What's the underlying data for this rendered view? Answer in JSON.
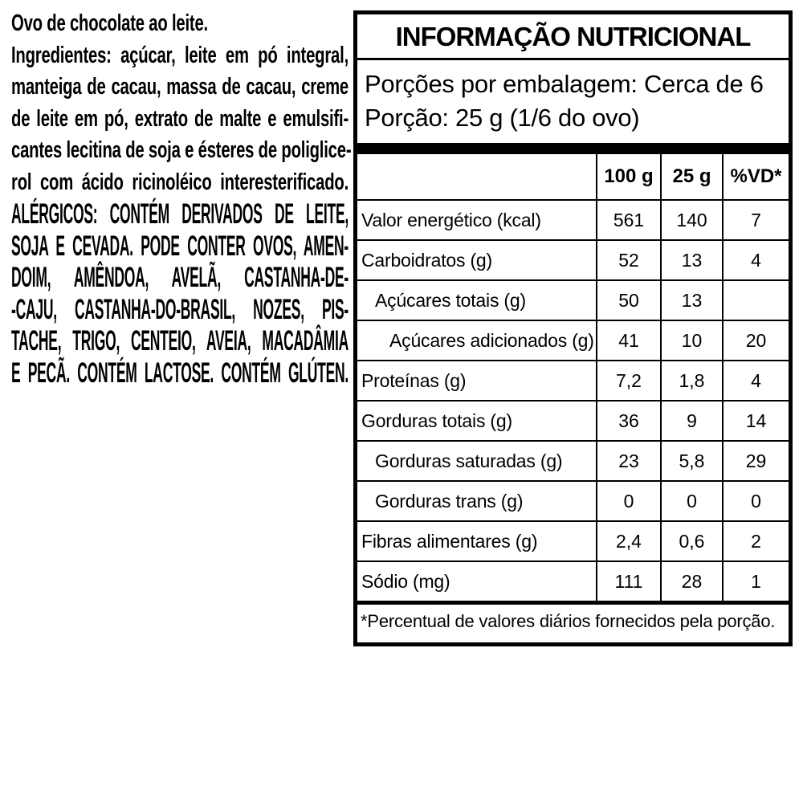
{
  "page": {
    "background_color": "#ffffff",
    "text_color": "#000000",
    "border_color": "#000000"
  },
  "left_panel": {
    "product_line": "Ovo de chocolate ao leite.",
    "ingredients_lead": "Ingredientes:",
    "ingredients_first_rest": "açúcar, leite em pó integral,",
    "ingredients_lines": [
      "manteiga de cacau, massa de cacau, creme",
      "de leite em pó, extrato de malte e emulsifi-",
      "cantes lecitina de soja e ésteres de poliglice-",
      "rol com ácido ricinoléico interesterificado."
    ],
    "allergens_lines": [
      "ALÉRGICOS: CONTÉM DERIVADOS DE LEITE,",
      "SOJA E CEVADA. PODE CONTER OVOS, AMEN-",
      "DOIM, AMÊNDOA, AVELÃ, CASTANHA-DE-",
      "-CAJU, CASTANHA-DO-BRASIL, NOZES, PIS-",
      "TACHE, TRIGO, CENTEIO, AVEIA, MACADÂMIA",
      "E PECÃ. CONTÉM LACTOSE. CONTÉM GLÚTEN."
    ]
  },
  "nutrition_table": {
    "title": "INFORMAÇÃO NUTRICIONAL",
    "servings_line": "Porções por embalagem: Cerca de 6",
    "portion_line": "Porção: 25 g (1/6 do ovo)",
    "columns": [
      "100 g",
      "25 g",
      "%VD*"
    ],
    "rows": [
      {
        "label": "Valor energético (kcal)",
        "indent": 0,
        "values": [
          "561",
          "140",
          "7"
        ]
      },
      {
        "label": "Carboidratos (g)",
        "indent": 0,
        "values": [
          "52",
          "13",
          "4"
        ]
      },
      {
        "label": "Açúcares totais (g)",
        "indent": 1,
        "values": [
          "50",
          "13",
          ""
        ]
      },
      {
        "label": "Açúcares adicionados (g)",
        "indent": 2,
        "values": [
          "41",
          "10",
          "20"
        ]
      },
      {
        "label": "Proteínas (g)",
        "indent": 0,
        "values": [
          "7,2",
          "1,8",
          "4"
        ]
      },
      {
        "label": "Gorduras totais (g)",
        "indent": 0,
        "values": [
          "36",
          "9",
          "14"
        ]
      },
      {
        "label": "Gorduras saturadas (g)",
        "indent": 1,
        "values": [
          "23",
          "5,8",
          "29"
        ]
      },
      {
        "label": "Gorduras trans (g)",
        "indent": 1,
        "values": [
          "0",
          "0",
          "0"
        ]
      },
      {
        "label": "Fibras alimentares (g)",
        "indent": 0,
        "values": [
          "2,4",
          "0,6",
          "2"
        ]
      },
      {
        "label": "Sódio (mg)",
        "indent": 0,
        "values": [
          "111",
          "28",
          "1"
        ]
      }
    ],
    "footnote": "*Percentual de valores diários fornecidos pela porção."
  }
}
